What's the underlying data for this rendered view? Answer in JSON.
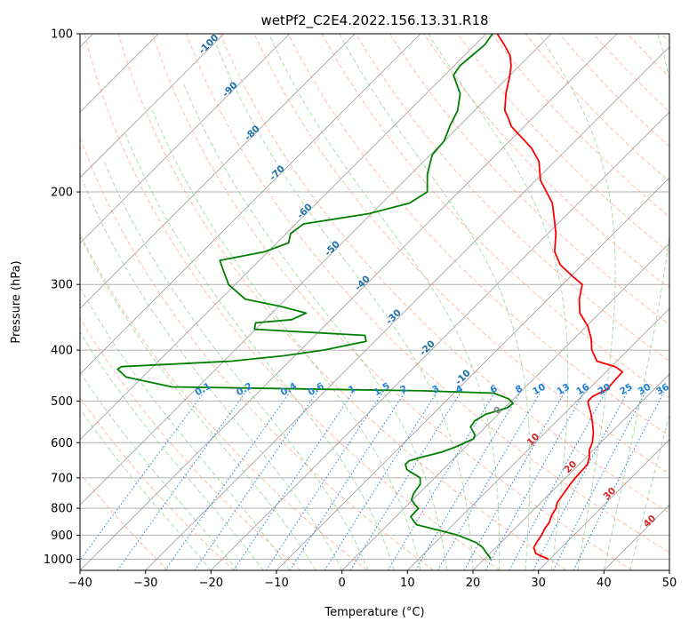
{
  "chart_data": {
    "type": "line",
    "title": "wetPf2_C2E4.2022.156.13.31.R18",
    "xlabel": "Temperature (°C)",
    "ylabel": "Pressure (hPa)",
    "xlim": [
      -40,
      50
    ],
    "ylim": [
      1050,
      100
    ],
    "y_scale": "log",
    "grid": true,
    "skew_deg": 45,
    "x_ticks": [
      -40,
      -30,
      -20,
      -10,
      0,
      10,
      20,
      30,
      40,
      50
    ],
    "y_ticks": [
      100,
      200,
      300,
      400,
      500,
      600,
      700,
      800,
      900,
      1000
    ],
    "series": [
      {
        "role": "temperature",
        "color": "#ff0000",
        "points": [
          [
            1000,
            29.8
          ],
          [
            975,
            27.0
          ],
          [
            950,
            25.8
          ],
          [
            925,
            25.4
          ],
          [
            900,
            25.1
          ],
          [
            875,
            24.6
          ],
          [
            850,
            24.3
          ],
          [
            825,
            23.6
          ],
          [
            800,
            23.2
          ],
          [
            780,
            22.5
          ],
          [
            750,
            22.1
          ],
          [
            720,
            21.7
          ],
          [
            700,
            21.5
          ],
          [
            680,
            21.4
          ],
          [
            660,
            21.3
          ],
          [
            640,
            20.5
          ],
          [
            620,
            19.4
          ],
          [
            600,
            18.7
          ],
          [
            575,
            17.4
          ],
          [
            550,
            15.7
          ],
          [
            525,
            13.8
          ],
          [
            510,
            12.5
          ],
          [
            500,
            11.7
          ],
          [
            490,
            11.7
          ],
          [
            475,
            12.8
          ],
          [
            455,
            12.6
          ],
          [
            440,
            12.5
          ],
          [
            430,
            10.6
          ],
          [
            420,
            7.0
          ],
          [
            400,
            4.5
          ],
          [
            380,
            2.6
          ],
          [
            360,
            0.2
          ],
          [
            340,
            -3.0
          ],
          [
            320,
            -5.2
          ],
          [
            300,
            -7.0
          ],
          [
            290,
            -9.6
          ],
          [
            275,
            -13.4
          ],
          [
            260,
            -16.2
          ],
          [
            240,
            -18.8
          ],
          [
            225,
            -21.3
          ],
          [
            210,
            -24.0
          ],
          [
            200,
            -26.6
          ],
          [
            190,
            -29.3
          ],
          [
            175,
            -32.4
          ],
          [
            165,
            -35.6
          ],
          [
            155,
            -39.8
          ],
          [
            150,
            -42.0
          ],
          [
            145,
            -43.6
          ],
          [
            140,
            -45.4
          ],
          [
            130,
            -47.8
          ],
          [
            120,
            -50.0
          ],
          [
            115,
            -51.3
          ],
          [
            110,
            -53.0
          ],
          [
            105,
            -55.5
          ],
          [
            100,
            -58.3
          ]
        ]
      },
      {
        "role": "dewpoint",
        "color": "#008000",
        "points": [
          [
            1000,
            21.0
          ],
          [
            990,
            20.5
          ],
          [
            970,
            19.2
          ],
          [
            950,
            18.0
          ],
          [
            930,
            16.3
          ],
          [
            900,
            12.3
          ],
          [
            880,
            8.5
          ],
          [
            860,
            4.5
          ],
          [
            850,
            3.7
          ],
          [
            830,
            2.3
          ],
          [
            800,
            2.2
          ],
          [
            790,
            1.3
          ],
          [
            770,
            -0.2
          ],
          [
            750,
            -0.8
          ],
          [
            720,
            -1.2
          ],
          [
            700,
            -2.2
          ],
          [
            690,
            -3.5
          ],
          [
            675,
            -5.5
          ],
          [
            660,
            -6.5
          ],
          [
            650,
            -6.5
          ],
          [
            640,
            -5.2
          ],
          [
            625,
            -2.8
          ],
          [
            610,
            -1.4
          ],
          [
            590,
            0.0
          ],
          [
            580,
            -0.4
          ],
          [
            560,
            -2.3
          ],
          [
            545,
            -2.6
          ],
          [
            530,
            -1.9
          ],
          [
            515,
            0.4
          ],
          [
            505,
            0.6
          ],
          [
            495,
            -0.8
          ],
          [
            483,
            -3.9
          ],
          [
            478,
            -15.0
          ],
          [
            470,
            -54.0
          ],
          [
            450,
            -62.5
          ],
          [
            435,
            -65.0
          ],
          [
            430,
            -64.8
          ],
          [
            420,
            -49.0
          ],
          [
            410,
            -41.6
          ],
          [
            400,
            -36.5
          ],
          [
            385,
            -31.3
          ],
          [
            375,
            -32.4
          ],
          [
            365,
            -50.2
          ],
          [
            355,
            -51.0
          ],
          [
            350,
            -46.0
          ],
          [
            340,
            -44.8
          ],
          [
            330,
            -49.8
          ],
          [
            320,
            -56.2
          ],
          [
            300,
            -61.0
          ],
          [
            280,
            -64.3
          ],
          [
            270,
            -66.0
          ],
          [
            260,
            -60.5
          ],
          [
            250,
            -58.2
          ],
          [
            240,
            -59.3
          ],
          [
            230,
            -58.8
          ],
          [
            220,
            -50.4
          ],
          [
            210,
            -45.8
          ],
          [
            200,
            -44.8
          ],
          [
            185,
            -47.5
          ],
          [
            170,
            -49.7
          ],
          [
            160,
            -50.0
          ],
          [
            150,
            -51.4
          ],
          [
            140,
            -52.6
          ],
          [
            130,
            -54.8
          ],
          [
            120,
            -58.6
          ],
          [
            115,
            -59.1
          ],
          [
            110,
            -58.8
          ],
          [
            105,
            -58.5
          ],
          [
            100,
            -59.0
          ]
        ]
      }
    ],
    "dry_adiabat_labels": [
      "-100",
      "-90",
      "-80",
      "-70",
      "-60",
      "-50",
      "-40",
      "-30",
      "-20",
      "-10",
      "0",
      "10",
      "20",
      "30",
      "40"
    ],
    "mixing_ratio_labels": [
      "0.1",
      "0.2",
      "0.4",
      "0.6",
      "1",
      "1.5",
      "2",
      "3",
      "4",
      "6",
      "8",
      "10",
      "13",
      "16",
      "20",
      "25",
      "30",
      "36"
    ],
    "colors": {
      "temperature": "#ff0000",
      "dewpoint": "#008000",
      "dry_adiabat": "#ff9e80",
      "moist_adiabat": "#8fcf8f",
      "mixing_ratio": "#1e7fd6",
      "isotherm": "#9a9a9a",
      "grid": "#b0b0b0",
      "adiabat_label_cold": "#1f6fa8",
      "adiabat_label_warm": "#d62828"
    }
  }
}
